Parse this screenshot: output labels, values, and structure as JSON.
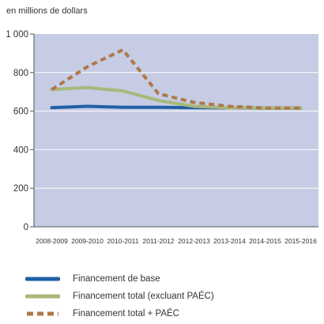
{
  "chart_data": {
    "type": "line",
    "ylabel": "en millions de dollars",
    "categories": [
      "2008-2009",
      "2009-2010",
      "2010-2011",
      "2011-2012",
      "2012-2013",
      "2013-2014",
      "2014-2015",
      "2015-2016"
    ],
    "ylim": [
      0,
      1000
    ],
    "yticks": [
      "0",
      "200",
      "400",
      "600",
      "800",
      "1 000"
    ],
    "grid": true,
    "background": "#c5cce3",
    "legend_position": "bottom",
    "series": [
      {
        "name": "Financement de base",
        "color": "#1f5fa6",
        "style": "solid",
        "values": [
          618,
          625,
          620,
          620,
          618,
          617,
          616,
          616
        ]
      },
      {
        "name": "Financement total (excluant PAÉC)",
        "color": "#a8b87a",
        "style": "solid",
        "values": [
          712,
          722,
          705,
          655,
          625,
          617,
          616,
          616
        ]
      },
      {
        "name": "Financement total + PAÉC",
        "color": "#b0784a",
        "style": "dashed",
        "values": [
          712,
          830,
          918,
          690,
          645,
          625,
          616,
          616
        ]
      }
    ]
  }
}
